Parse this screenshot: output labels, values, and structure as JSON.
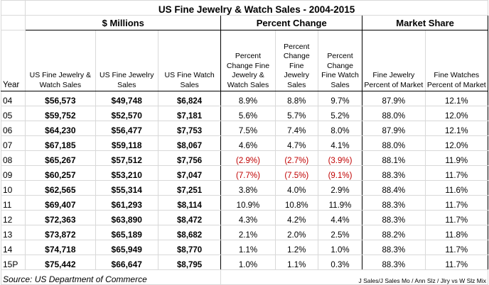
{
  "title": "US Fine Jewelry & Watch Sales - 2004-2015",
  "groups": {
    "millions": "$ Millions",
    "percent_change": "Percent Change",
    "market_share": "Market Share"
  },
  "columns": {
    "year": "Year",
    "jw_sales": "US Fine Jewelry & Watch Sales",
    "j_sales": "US Fine Jewelry Sales",
    "w_sales": "US Fine Watch Sales",
    "pc_jw": "Percent Change Fine Jewelry & Watch Sales",
    "pc_j": "Percent Change Fine Jewelry Sales",
    "pc_w": "Percent Change Fine Watch Sales",
    "ms_j": "Fine Jewelry Percent of Market",
    "ms_w": "Fine Watches Percent of Market"
  },
  "rows": [
    {
      "year": "04",
      "jw": "$56,573",
      "j": "$49,748",
      "w": "$6,824",
      "pc_jw": "8.9%",
      "pc_j": "8.8%",
      "pc_w": "9.7%",
      "ms_j": "87.9%",
      "ms_w": "12.1%"
    },
    {
      "year": "05",
      "jw": "$59,752",
      "j": "$52,570",
      "w": "$7,181",
      "pc_jw": "5.6%",
      "pc_j": "5.7%",
      "pc_w": "5.2%",
      "ms_j": "88.0%",
      "ms_w": "12.0%"
    },
    {
      "year": "06",
      "jw": "$64,230",
      "j": "$56,477",
      "w": "$7,753",
      "pc_jw": "7.5%",
      "pc_j": "7.4%",
      "pc_w": "8.0%",
      "ms_j": "87.9%",
      "ms_w": "12.1%"
    },
    {
      "year": "07",
      "jw": "$67,185",
      "j": "$59,118",
      "w": "$8,067",
      "pc_jw": "4.6%",
      "pc_j": "4.7%",
      "pc_w": "4.1%",
      "ms_j": "88.0%",
      "ms_w": "12.0%"
    },
    {
      "year": "08",
      "jw": "$65,267",
      "j": "$57,512",
      "w": "$7,756",
      "pc_jw": "(2.9%)",
      "pc_j": "(2.7%)",
      "pc_w": "(3.9%)",
      "ms_j": "88.1%",
      "ms_w": "11.9%"
    },
    {
      "year": "09",
      "jw": "$60,257",
      "j": "$53,210",
      "w": "$7,047",
      "pc_jw": "(7.7%)",
      "pc_j": "(7.5%)",
      "pc_w": "(9.1%)",
      "ms_j": "88.3%",
      "ms_w": "11.7%"
    },
    {
      "year": "10",
      "jw": "$62,565",
      "j": "$55,314",
      "w": "$7,251",
      "pc_jw": "3.8%",
      "pc_j": "4.0%",
      "pc_w": "2.9%",
      "ms_j": "88.4%",
      "ms_w": "11.6%"
    },
    {
      "year": "11",
      "jw": "$69,407",
      "j": "$61,293",
      "w": "$8,114",
      "pc_jw": "10.9%",
      "pc_j": "10.8%",
      "pc_w": "11.9%",
      "ms_j": "88.3%",
      "ms_w": "11.7%"
    },
    {
      "year": "12",
      "jw": "$72,363",
      "j": "$63,890",
      "w": "$8,472",
      "pc_jw": "4.3%",
      "pc_j": "4.2%",
      "pc_w": "4.4%",
      "ms_j": "88.3%",
      "ms_w": "11.7%"
    },
    {
      "year": "13",
      "jw": "$73,872",
      "j": "$65,189",
      "w": "$8,682",
      "pc_jw": "2.1%",
      "pc_j": "2.0%",
      "pc_w": "2.5%",
      "ms_j": "88.2%",
      "ms_w": "11.8%"
    },
    {
      "year": "14",
      "jw": "$74,718",
      "j": "$65,949",
      "w": "$8,770",
      "pc_jw": "1.1%",
      "pc_j": "1.2%",
      "pc_w": "1.0%",
      "ms_j": "88.3%",
      "ms_w": "11.7%"
    },
    {
      "year": "15P",
      "jw": "$75,442",
      "j": "$66,647",
      "w": "$8,795",
      "pc_jw": "1.0%",
      "pc_j": "1.1%",
      "pc_w": "0.3%",
      "ms_j": "88.3%",
      "ms_w": "11.7%"
    }
  ],
  "footer": {
    "source": "Source:  US Department of Commerce",
    "note": "J Sales/J Sales Mo / Ann Slz / Jlry vs W Slz Mix"
  },
  "colors": {
    "negative": "#c00000",
    "grid": "#d9d9d9",
    "border": "#000000"
  }
}
